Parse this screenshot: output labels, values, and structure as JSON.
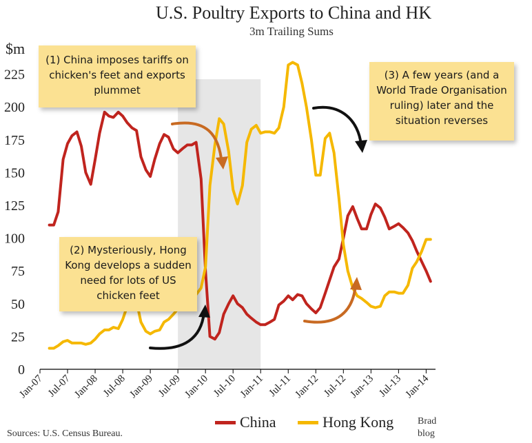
{
  "chart_data": {
    "type": "line",
    "title": "U.S. Poultry Exports to China and HK",
    "subtitle": "3m Trailing Sums",
    "ylabel": "$m",
    "ylim": [
      0,
      225
    ],
    "yticks": [
      0,
      25,
      50,
      75,
      100,
      125,
      150,
      175,
      200,
      225
    ],
    "x_range": [
      2007.0,
      2014.17
    ],
    "xtick_labels": [
      {
        "x": 2007.0,
        "label": "Jan-07"
      },
      {
        "x": 2007.5,
        "label": "Jul-07"
      },
      {
        "x": 2008.0,
        "label": "Jan-08"
      },
      {
        "x": 2008.5,
        "label": "Jul-08"
      },
      {
        "x": 2009.0,
        "label": "Jan-09"
      },
      {
        "x": 2009.5,
        "label": "Jul-09"
      },
      {
        "x": 2010.0,
        "label": "Jan-10"
      },
      {
        "x": 2010.5,
        "label": "Jul-10"
      },
      {
        "x": 2011.0,
        "label": "Jan-11"
      },
      {
        "x": 2011.5,
        "label": "Jul-11"
      },
      {
        "x": 2012.0,
        "label": "Jan-12"
      },
      {
        "x": 2012.5,
        "label": "Jul-12"
      },
      {
        "x": 2013.0,
        "label": "Jan-13"
      },
      {
        "x": 2013.5,
        "label": "Jul-13"
      },
      {
        "x": 2014.0,
        "label": "Jan-14"
      }
    ],
    "shaded_period": [
      2009.5,
      2011.0
    ],
    "series": [
      {
        "name": "China",
        "color": "#c0241e",
        "points": [
          [
            2007.17,
            110
          ],
          [
            2007.25,
            110
          ],
          [
            2007.33,
            120
          ],
          [
            2007.42,
            160
          ],
          [
            2007.5,
            172
          ],
          [
            2007.58,
            178
          ],
          [
            2007.67,
            181
          ],
          [
            2007.75,
            170
          ],
          [
            2007.83,
            150
          ],
          [
            2007.92,
            141
          ],
          [
            2008.0,
            160
          ],
          [
            2008.08,
            180
          ],
          [
            2008.17,
            196
          ],
          [
            2008.25,
            193
          ],
          [
            2008.33,
            192
          ],
          [
            2008.42,
            196
          ],
          [
            2008.5,
            193
          ],
          [
            2008.58,
            188
          ],
          [
            2008.67,
            184
          ],
          [
            2008.75,
            182
          ],
          [
            2008.83,
            162
          ],
          [
            2008.92,
            152
          ],
          [
            2009.0,
            147
          ],
          [
            2009.08,
            160
          ],
          [
            2009.17,
            172
          ],
          [
            2009.25,
            179
          ],
          [
            2009.33,
            177
          ],
          [
            2009.42,
            168
          ],
          [
            2009.5,
            165
          ],
          [
            2009.58,
            168
          ],
          [
            2009.67,
            171
          ],
          [
            2009.75,
            171
          ],
          [
            2009.83,
            173
          ],
          [
            2009.92,
            145
          ],
          [
            2010.0,
            75
          ],
          [
            2010.08,
            25
          ],
          [
            2010.17,
            23
          ],
          [
            2010.25,
            28
          ],
          [
            2010.33,
            42
          ],
          [
            2010.42,
            50
          ],
          [
            2010.5,
            56
          ],
          [
            2010.58,
            50
          ],
          [
            2010.67,
            47
          ],
          [
            2010.75,
            42
          ],
          [
            2010.83,
            39
          ],
          [
            2010.92,
            36
          ],
          [
            2011.0,
            34
          ],
          [
            2011.08,
            34
          ],
          [
            2011.17,
            36
          ],
          [
            2011.25,
            38
          ],
          [
            2011.33,
            49
          ],
          [
            2011.42,
            52
          ],
          [
            2011.5,
            56
          ],
          [
            2011.58,
            53
          ],
          [
            2011.67,
            57
          ],
          [
            2011.75,
            56
          ],
          [
            2011.83,
            50
          ],
          [
            2011.92,
            46
          ],
          [
            2012.0,
            43
          ],
          [
            2012.08,
            47
          ],
          [
            2012.17,
            58
          ],
          [
            2012.25,
            68
          ],
          [
            2012.33,
            78
          ],
          [
            2012.42,
            84
          ],
          [
            2012.5,
            100
          ],
          [
            2012.58,
            117
          ],
          [
            2012.67,
            124
          ],
          [
            2012.75,
            115
          ],
          [
            2012.83,
            107
          ],
          [
            2012.92,
            107
          ],
          [
            2013.0,
            118
          ],
          [
            2013.08,
            126
          ],
          [
            2013.17,
            123
          ],
          [
            2013.25,
            116
          ],
          [
            2013.33,
            107
          ],
          [
            2013.42,
            109
          ],
          [
            2013.5,
            111
          ],
          [
            2013.58,
            108
          ],
          [
            2013.67,
            104
          ],
          [
            2013.75,
            98
          ],
          [
            2013.83,
            90
          ],
          [
            2013.92,
            82
          ],
          [
            2014.0,
            75
          ],
          [
            2014.08,
            67
          ]
        ]
      },
      {
        "name": "Hong Kong",
        "color": "#f5b800",
        "points": [
          [
            2007.17,
            16
          ],
          [
            2007.25,
            16
          ],
          [
            2007.33,
            18
          ],
          [
            2007.42,
            21
          ],
          [
            2007.5,
            22
          ],
          [
            2007.58,
            20
          ],
          [
            2007.67,
            20
          ],
          [
            2007.75,
            20
          ],
          [
            2007.83,
            19
          ],
          [
            2007.92,
            20
          ],
          [
            2008.0,
            23
          ],
          [
            2008.08,
            27
          ],
          [
            2008.17,
            30
          ],
          [
            2008.25,
            30
          ],
          [
            2008.33,
            32
          ],
          [
            2008.42,
            31
          ],
          [
            2008.5,
            38
          ],
          [
            2008.58,
            48
          ],
          [
            2008.67,
            60
          ],
          [
            2008.75,
            52
          ],
          [
            2008.83,
            36
          ],
          [
            2008.92,
            29
          ],
          [
            2009.0,
            27
          ],
          [
            2009.08,
            29
          ],
          [
            2009.17,
            30
          ],
          [
            2009.25,
            36
          ],
          [
            2009.33,
            38
          ],
          [
            2009.42,
            42
          ],
          [
            2009.5,
            46
          ],
          [
            2009.58,
            50
          ],
          [
            2009.67,
            52
          ],
          [
            2009.75,
            55
          ],
          [
            2009.83,
            57
          ],
          [
            2009.92,
            62
          ],
          [
            2010.0,
            78
          ],
          [
            2010.08,
            140
          ],
          [
            2010.17,
            171
          ],
          [
            2010.25,
            191
          ],
          [
            2010.33,
            187
          ],
          [
            2010.42,
            166
          ],
          [
            2010.5,
            137
          ],
          [
            2010.58,
            126
          ],
          [
            2010.67,
            140
          ],
          [
            2010.75,
            173
          ],
          [
            2010.83,
            183
          ],
          [
            2010.92,
            186
          ],
          [
            2011.0,
            180
          ],
          [
            2011.08,
            181
          ],
          [
            2011.17,
            181
          ],
          [
            2011.25,
            180
          ],
          [
            2011.33,
            184
          ],
          [
            2011.42,
            200
          ],
          [
            2011.5,
            232
          ],
          [
            2011.58,
            234
          ],
          [
            2011.67,
            232
          ],
          [
            2011.75,
            218
          ],
          [
            2011.83,
            200
          ],
          [
            2011.92,
            175
          ],
          [
            2012.0,
            148
          ],
          [
            2012.08,
            148
          ],
          [
            2012.17,
            176
          ],
          [
            2012.25,
            180
          ],
          [
            2012.33,
            165
          ],
          [
            2012.42,
            130
          ],
          [
            2012.5,
            95
          ],
          [
            2012.58,
            75
          ],
          [
            2012.67,
            62
          ],
          [
            2012.75,
            56
          ],
          [
            2012.83,
            54
          ],
          [
            2012.92,
            51
          ],
          [
            2013.0,
            48
          ],
          [
            2013.08,
            47
          ],
          [
            2013.17,
            48
          ],
          [
            2013.25,
            56
          ],
          [
            2013.33,
            59
          ],
          [
            2013.42,
            59
          ],
          [
            2013.5,
            58
          ],
          [
            2013.58,
            58
          ],
          [
            2013.67,
            64
          ],
          [
            2013.75,
            77
          ],
          [
            2013.83,
            82
          ],
          [
            2013.92,
            90
          ],
          [
            2014.0,
            99
          ],
          [
            2014.08,
            99
          ]
        ]
      }
    ],
    "annotations": [
      {
        "id": "note1",
        "text": "(1) China imposes tariffs on chicken's feet and exports plummet"
      },
      {
        "id": "note2",
        "text": "(2) Mysteriously, Hong Kong develops a sudden need for lots of US chicken feet"
      },
      {
        "id": "note3",
        "text": "(3) A few years (and a World Trade Organisation ruling) later and the situation reverses"
      }
    ]
  },
  "footer": {
    "source": "Sources: U.S. Census Bureau.",
    "credit_line1": "Brad",
    "credit_line2": "blog"
  }
}
